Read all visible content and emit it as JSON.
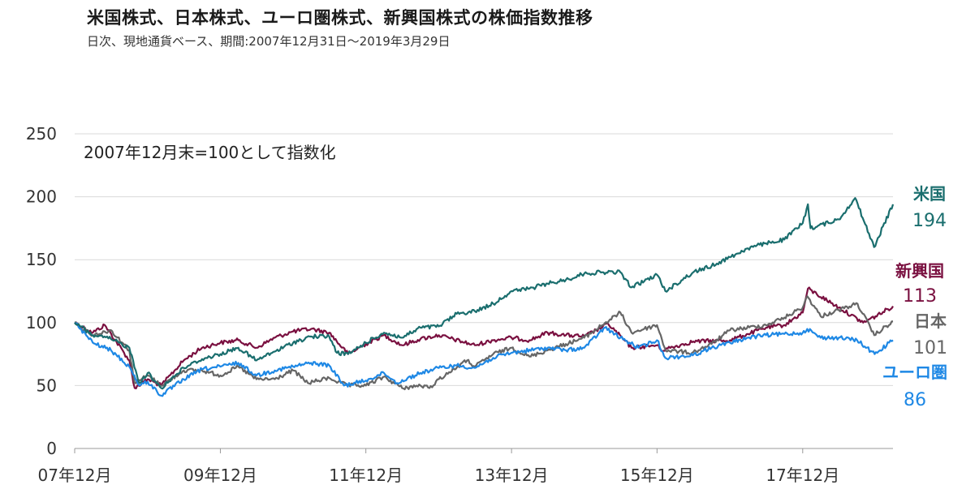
{
  "title": "米国株式、日本株式、ユーロ圏株式、新興国株式の株価指数推移",
  "subtitle": "日次、現地通貨ベース、期間:2007年12月31日～2019年3月29日",
  "chart_data": {
    "type": "line",
    "note": "2007年12月末=100として指数化",
    "x_start": "2007-12-31",
    "x_end": "2019-03-29",
    "ylim": [
      0,
      250
    ],
    "yticks": [
      0,
      50,
      100,
      150,
      200,
      250
    ],
    "yticks_labels": [
      "0",
      "50",
      "100",
      "150",
      "200",
      "250"
    ],
    "xticks_labels": [
      "07年12月",
      "09年12月",
      "11年12月",
      "13年12月",
      "15年12月",
      "17年12月"
    ],
    "grid": true,
    "series": [
      {
        "name": "米国",
        "end_value": "194",
        "color": "#1a6e6e",
        "dates": [
          "2007-12-31",
          "2008-03-31",
          "2008-06-30",
          "2008-09-30",
          "2008-11-20",
          "2008-12-31",
          "2009-03-09",
          "2009-06-30",
          "2009-09-30",
          "2009-12-31",
          "2010-03-31",
          "2010-06-30",
          "2010-09-30",
          "2010-12-31",
          "2011-03-31",
          "2011-06-30",
          "2011-08-08",
          "2011-10-03",
          "2011-12-31",
          "2012-03-31",
          "2012-06-30",
          "2012-09-30",
          "2012-12-31",
          "2013-03-31",
          "2013-06-30",
          "2013-09-30",
          "2013-12-31",
          "2014-03-31",
          "2014-06-30",
          "2014-09-30",
          "2014-12-31",
          "2015-03-31",
          "2015-06-30",
          "2015-08-25",
          "2015-12-31",
          "2016-02-11",
          "2016-06-30",
          "2016-09-30",
          "2016-12-31",
          "2017-03-31",
          "2017-06-30",
          "2017-09-30",
          "2017-12-31",
          "2018-01-26",
          "2018-02-08",
          "2018-06-30",
          "2018-09-20",
          "2018-12-24",
          "2019-03-29"
        ],
        "values": [
          100,
          90,
          87,
          80,
          52,
          60,
          48,
          64,
          71,
          75,
          80,
          70,
          77,
          84,
          89,
          89,
          76,
          75,
          84,
          92,
          88,
          96,
          97,
          107,
          109,
          115,
          125,
          127,
          131,
          134,
          139,
          140,
          140,
          128,
          138,
          125,
          140,
          145,
          152,
          159,
          163,
          166,
          179,
          194,
          175,
          182,
          199,
          160,
          194
        ]
      },
      {
        "name": "新興国",
        "end_value": "113",
        "color": "#7a1040",
        "dates": [
          "2007-12-31",
          "2008-03-31",
          "2008-05-30",
          "2008-09-30",
          "2008-10-27",
          "2008-12-31",
          "2009-03-09",
          "2009-06-30",
          "2009-09-30",
          "2009-12-31",
          "2010-03-31",
          "2010-06-30",
          "2010-09-30",
          "2010-12-31",
          "2011-03-31",
          "2011-06-30",
          "2011-10-03",
          "2011-12-31",
          "2012-03-31",
          "2012-06-30",
          "2012-09-30",
          "2012-12-31",
          "2013-06-30",
          "2013-09-30",
          "2013-12-31",
          "2014-03-31",
          "2014-06-30",
          "2014-09-30",
          "2014-12-31",
          "2015-04-30",
          "2015-08-25",
          "2015-12-31",
          "2016-01-21",
          "2016-06-30",
          "2016-12-31",
          "2017-03-31",
          "2017-06-30",
          "2017-09-30",
          "2017-12-31",
          "2018-01-26",
          "2018-06-30",
          "2018-10-30",
          "2018-12-31",
          "2019-03-29"
        ],
        "values": [
          100,
          92,
          98,
          70,
          48,
          55,
          50,
          70,
          80,
          84,
          86,
          80,
          88,
          93,
          95,
          92,
          75,
          83,
          90,
          82,
          87,
          90,
          82,
          86,
          88,
          86,
          92,
          90,
          89,
          99,
          80,
          82,
          78,
          85,
          86,
          91,
          96,
          98,
          108,
          127,
          112,
          100,
          105,
          113
        ]
      },
      {
        "name": "日本",
        "end_value": "101",
        "color": "#666666",
        "dates": [
          "2007-12-31",
          "2008-03-31",
          "2008-06-30",
          "2008-09-30",
          "2008-10-27",
          "2008-12-31",
          "2009-03-10",
          "2009-06-30",
          "2009-09-30",
          "2009-12-31",
          "2010-03-31",
          "2010-06-30",
          "2010-09-30",
          "2010-12-31",
          "2011-03-15",
          "2011-06-30",
          "2011-09-30",
          "2011-12-31",
          "2012-03-31",
          "2012-06-30",
          "2012-09-30",
          "2012-11-14",
          "2012-12-31",
          "2013-05-22",
          "2013-06-30",
          "2013-09-30",
          "2013-12-31",
          "2014-03-31",
          "2014-06-30",
          "2014-09-30",
          "2014-12-31",
          "2015-03-31",
          "2015-06-30",
          "2015-08-25",
          "2015-12-31",
          "2016-02-12",
          "2016-06-24",
          "2016-09-30",
          "2016-12-31",
          "2017-06-30",
          "2017-09-30",
          "2017-12-31",
          "2018-01-23",
          "2018-03-31",
          "2018-06-30",
          "2018-10-02",
          "2018-12-25",
          "2019-03-29"
        ],
        "values": [
          100,
          90,
          94,
          78,
          52,
          58,
          50,
          62,
          62,
          58,
          65,
          55,
          55,
          62,
          52,
          56,
          50,
          50,
          57,
          48,
          50,
          48,
          55,
          70,
          65,
          75,
          80,
          73,
          78,
          83,
          88,
          98,
          108,
          92,
          98,
          78,
          76,
          83,
          94,
          98,
          104,
          112,
          121,
          105,
          110,
          115,
          90,
          101
        ]
      },
      {
        "name": "ユーロ圏",
        "end_value": "86",
        "color": "#1e88e5",
        "dates": [
          "2007-12-31",
          "2008-03-31",
          "2008-06-30",
          "2008-09-30",
          "2008-11-20",
          "2008-12-31",
          "2009-03-09",
          "2009-06-30",
          "2009-09-30",
          "2009-12-31",
          "2010-03-31",
          "2010-06-30",
          "2010-09-30",
          "2010-12-31",
          "2011-03-31",
          "2011-06-30",
          "2011-09-12",
          "2011-12-31",
          "2012-03-31",
          "2012-06-04",
          "2012-09-30",
          "2012-12-31",
          "2013-03-31",
          "2013-06-30",
          "2013-09-30",
          "2013-12-31",
          "2014-06-30",
          "2014-09-30",
          "2014-12-31",
          "2015-04-13",
          "2015-06-30",
          "2015-09-29",
          "2015-12-31",
          "2016-02-11",
          "2016-06-27",
          "2016-09-30",
          "2016-12-31",
          "2017-03-31",
          "2017-06-30",
          "2017-09-30",
          "2017-12-31",
          "2018-01-23",
          "2018-03-31",
          "2018-06-30",
          "2018-09-30",
          "2018-12-27",
          "2019-03-29"
        ],
        "values": [
          100,
          84,
          78,
          65,
          50,
          53,
          42,
          55,
          63,
          65,
          68,
          58,
          62,
          65,
          68,
          66,
          50,
          54,
          60,
          52,
          60,
          64,
          66,
          64,
          72,
          76,
          80,
          78,
          80,
          96,
          88,
          80,
          86,
          72,
          74,
          80,
          84,
          88,
          90,
          91,
          92,
          95,
          88,
          88,
          86,
          75,
          86
        ]
      }
    ]
  }
}
